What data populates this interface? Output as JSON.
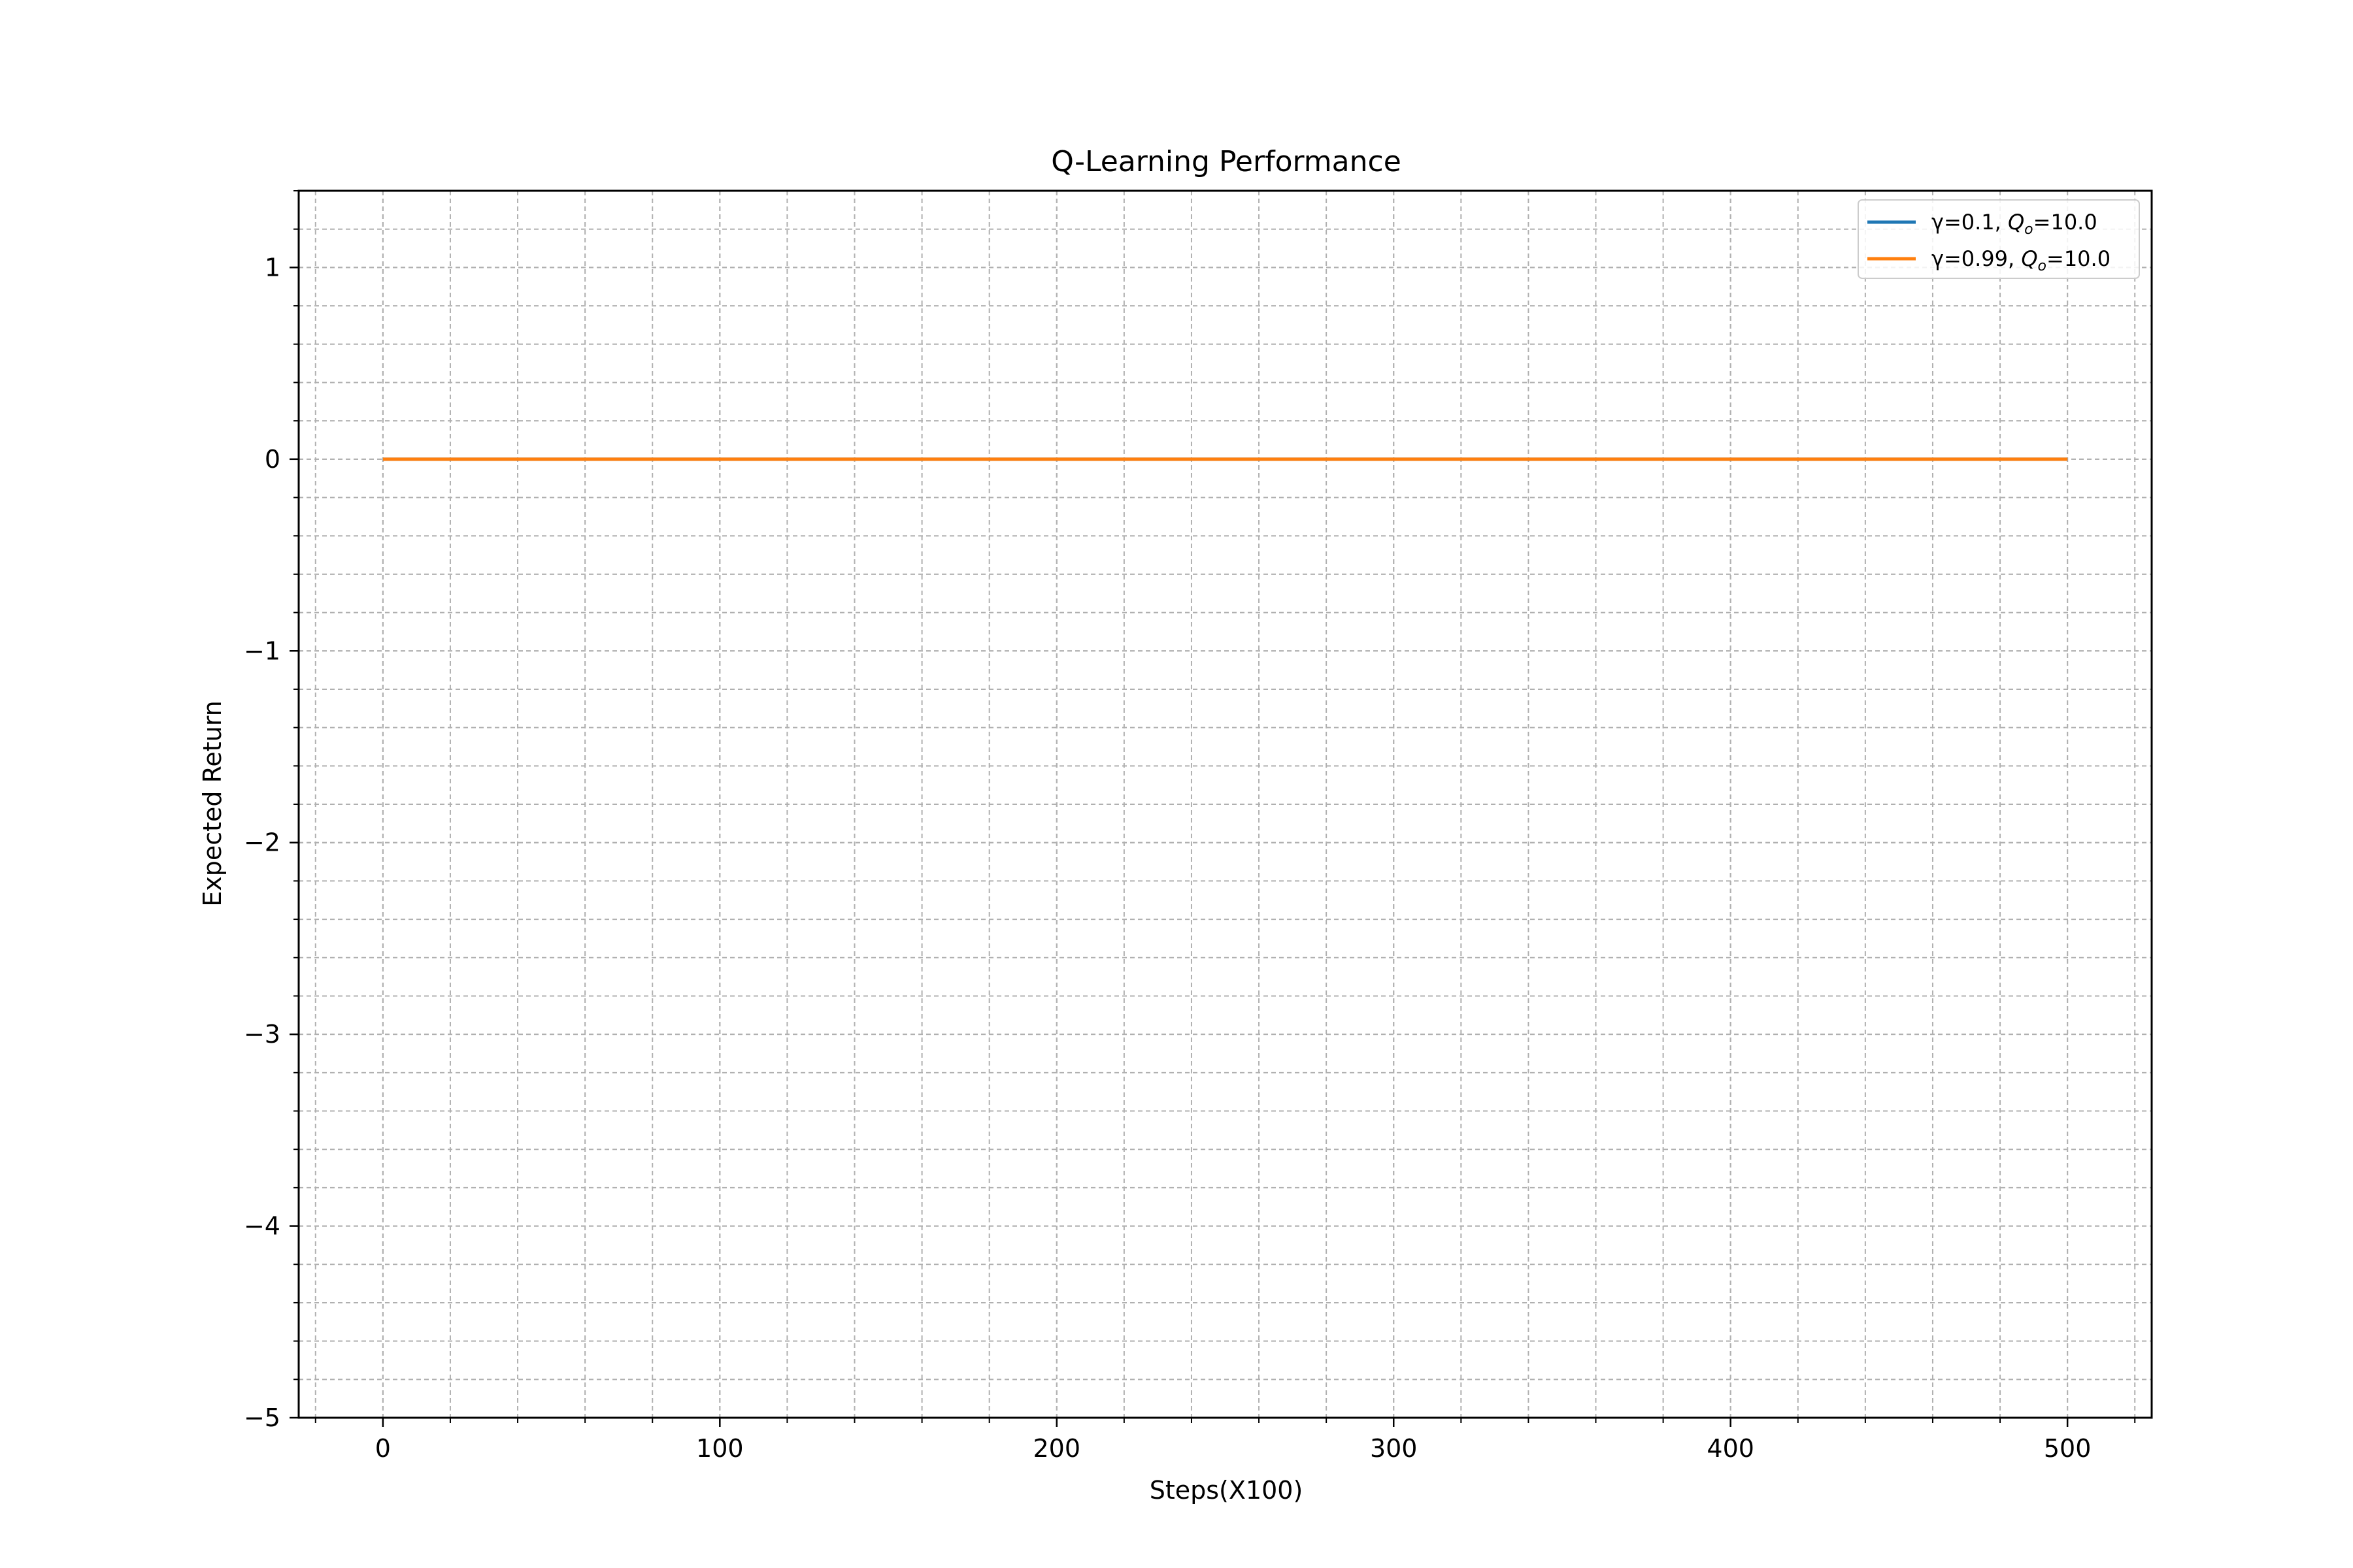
{
  "chart_data": {
    "type": "line",
    "title": "Q-Learning Performance",
    "xlabel": "Steps(X100)",
    "ylabel": "Expected Return",
    "xlim": [
      -25,
      525
    ],
    "ylim": [
      -5,
      1.4
    ],
    "xticks": [
      0,
      100,
      200,
      300,
      400,
      500
    ],
    "xtick_labels": [
      "0",
      "100",
      "200",
      "300",
      "400",
      "500"
    ],
    "xminor_step": 20,
    "yticks": [
      -5,
      -4,
      -3,
      -2,
      -1,
      0,
      1
    ],
    "ytick_labels": [
      "−5",
      "−4",
      "−3",
      "−2",
      "−1",
      "0",
      "1"
    ],
    "yminor_step": 0.2,
    "grid": true,
    "grid_minor": true,
    "legend_position": "top-right",
    "series": [
      {
        "gamma": "γ=0.1, ",
        "q_symbol": "Q",
        "q_sub": "o",
        "q_value": "=10.0",
        "color": "#1f77b4",
        "x": [
          0,
          500
        ],
        "y": [
          0,
          0
        ]
      },
      {
        "gamma": "γ=0.99, ",
        "q_symbol": "Q",
        "q_sub": "o",
        "q_value": "=10.0",
        "color": "#ff7f0e",
        "x": [
          0,
          500
        ],
        "y": [
          0,
          0
        ]
      }
    ]
  }
}
